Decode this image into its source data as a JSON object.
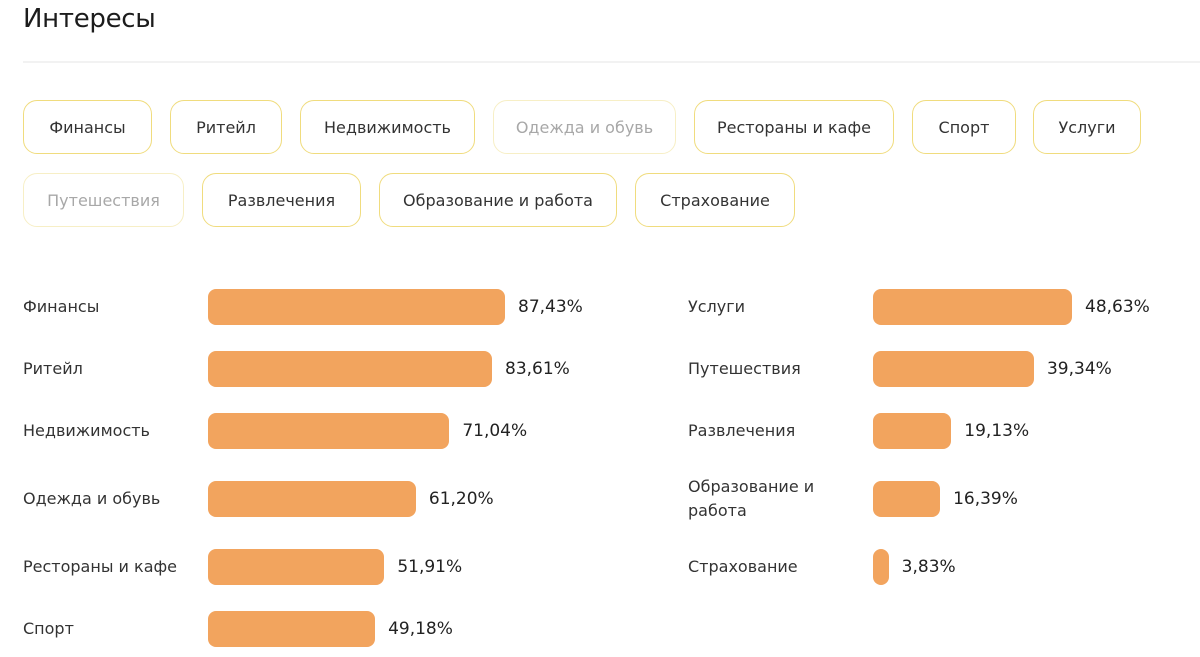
{
  "header": {
    "title": "Интересы"
  },
  "filters": {
    "chips": [
      {
        "label": "Финансы",
        "active": true
      },
      {
        "label": "Ритейл",
        "active": true
      },
      {
        "label": "Недвижимость",
        "active": true
      },
      {
        "label": "Одежда и обувь",
        "active": false
      },
      {
        "label": "Рестораны и кафе",
        "active": true
      },
      {
        "label": "Спорт",
        "active": true
      },
      {
        "label": "Услуги",
        "active": true
      },
      {
        "label": "Путешествия",
        "active": false
      },
      {
        "label": "Развлечения",
        "active": true
      },
      {
        "label": "Образование и работа",
        "active": true
      },
      {
        "label": "Страхование",
        "active": true
      }
    ]
  },
  "colors": {
    "bar": "#f2a45e",
    "chip_border": "#f0dc7e",
    "chip_border_inactive": "#f7efc6"
  },
  "chart_data": {
    "type": "bar",
    "orientation": "horizontal",
    "title": "Интересы",
    "unit": "%",
    "categories": [
      "Финансы",
      "Ритейл",
      "Недвижимость",
      "Одежда и обувь",
      "Рестораны и кафе",
      "Спорт",
      "Услуги",
      "Путешествия",
      "Развлечения",
      "Образование и работа",
      "Страхование"
    ],
    "values": [
      87.43,
      83.61,
      71.04,
      61.2,
      51.91,
      49.18,
      48.63,
      39.34,
      19.13,
      16.39,
      3.83
    ],
    "labels": [
      "87,43%",
      "83,61%",
      "71,04%",
      "61,20%",
      "51,91%",
      "49,18%",
      "48,63%",
      "39,34%",
      "19,13%",
      "16,39%",
      "3,83%"
    ],
    "columns": [
      {
        "items": [
          0,
          1,
          2,
          3,
          4,
          5
        ]
      },
      {
        "items": [
          6,
          7,
          8,
          9,
          10
        ]
      }
    ],
    "grid": false,
    "legend": "none"
  }
}
